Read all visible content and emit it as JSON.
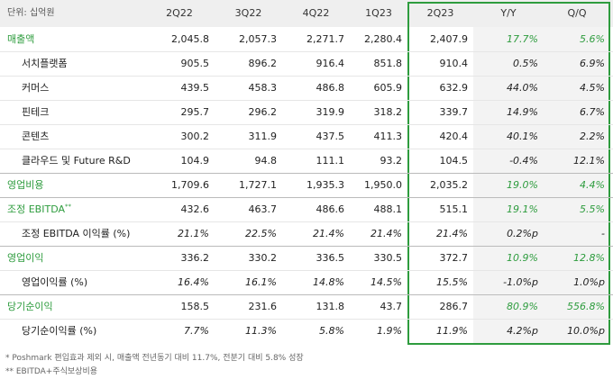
{
  "table": {
    "unit": "단위: 십억원",
    "columns": [
      "2Q22",
      "3Q22",
      "4Q22",
      "1Q23",
      "2Q23",
      "Y/Y",
      "Q/Q"
    ],
    "rows": [
      {
        "label": "매출액",
        "main": true,
        "cells": [
          "2,045.8",
          "2,057.3",
          "2,271.7",
          "2,280.4",
          "2,407.9",
          "17.7%",
          "5.6%"
        ]
      },
      {
        "label": "서치플랫폼",
        "cells": [
          "905.5",
          "896.2",
          "916.4",
          "851.8",
          "910.4",
          "0.5%",
          "6.9%"
        ]
      },
      {
        "label": "커머스",
        "cells": [
          "439.5",
          "458.3",
          "486.8",
          "605.9",
          "632.9",
          "44.0%",
          "4.5%"
        ]
      },
      {
        "label": "핀테크",
        "cells": [
          "295.7",
          "296.2",
          "319.9",
          "318.2",
          "339.7",
          "14.9%",
          "6.7%"
        ]
      },
      {
        "label": "콘텐츠",
        "cells": [
          "300.2",
          "311.9",
          "437.5",
          "411.3",
          "420.4",
          "40.1%",
          "2.2%"
        ]
      },
      {
        "label": "클라우드 및 Future R&D",
        "cells": [
          "104.9",
          "94.8",
          "111.1",
          "93.2",
          "104.5",
          "-0.4%",
          "12.1%"
        ]
      },
      {
        "label": "영업비용",
        "main": true,
        "cells": [
          "1,709.6",
          "1,727.1",
          "1,935.3",
          "1,950.0",
          "2,035.2",
          "19.0%",
          "4.4%"
        ]
      },
      {
        "label": "조정 EBITDA",
        "note": "**",
        "main": true,
        "cells": [
          "432.6",
          "463.7",
          "486.6",
          "488.1",
          "515.1",
          "19.1%",
          "5.5%"
        ]
      },
      {
        "label": "조정 EBITDA 이익률 (%)",
        "cells": [
          "21.1%",
          "22.5%",
          "21.4%",
          "21.4%",
          "21.4%",
          "0.2%p",
          "-"
        ]
      },
      {
        "label": "영업이익",
        "main": true,
        "cells": [
          "336.2",
          "330.2",
          "336.5",
          "330.5",
          "372.7",
          "10.9%",
          "12.8%"
        ]
      },
      {
        "label": "영업이익률 (%)",
        "cells": [
          "16.4%",
          "16.1%",
          "14.8%",
          "14.5%",
          "15.5%",
          "-1.0%p",
          "1.0%p"
        ]
      },
      {
        "label": "당기순이익",
        "main": true,
        "cells": [
          "158.5",
          "231.6",
          "131.8",
          "43.7",
          "286.7",
          "80.9%",
          "556.8%"
        ]
      },
      {
        "label": "당기순이익률 (%)",
        "cells": [
          "7.7%",
          "11.3%",
          "5.8%",
          "1.9%",
          "11.9%",
          "4.2%p",
          "10.0%p"
        ]
      }
    ],
    "footnotes": [
      "* Poshmark 편입효과 제외 시, 매출액 전년동기 대비 11.7%, 전분기 대비 5.8% 성장",
      "** EBITDA+주식보상비용"
    ]
  }
}
